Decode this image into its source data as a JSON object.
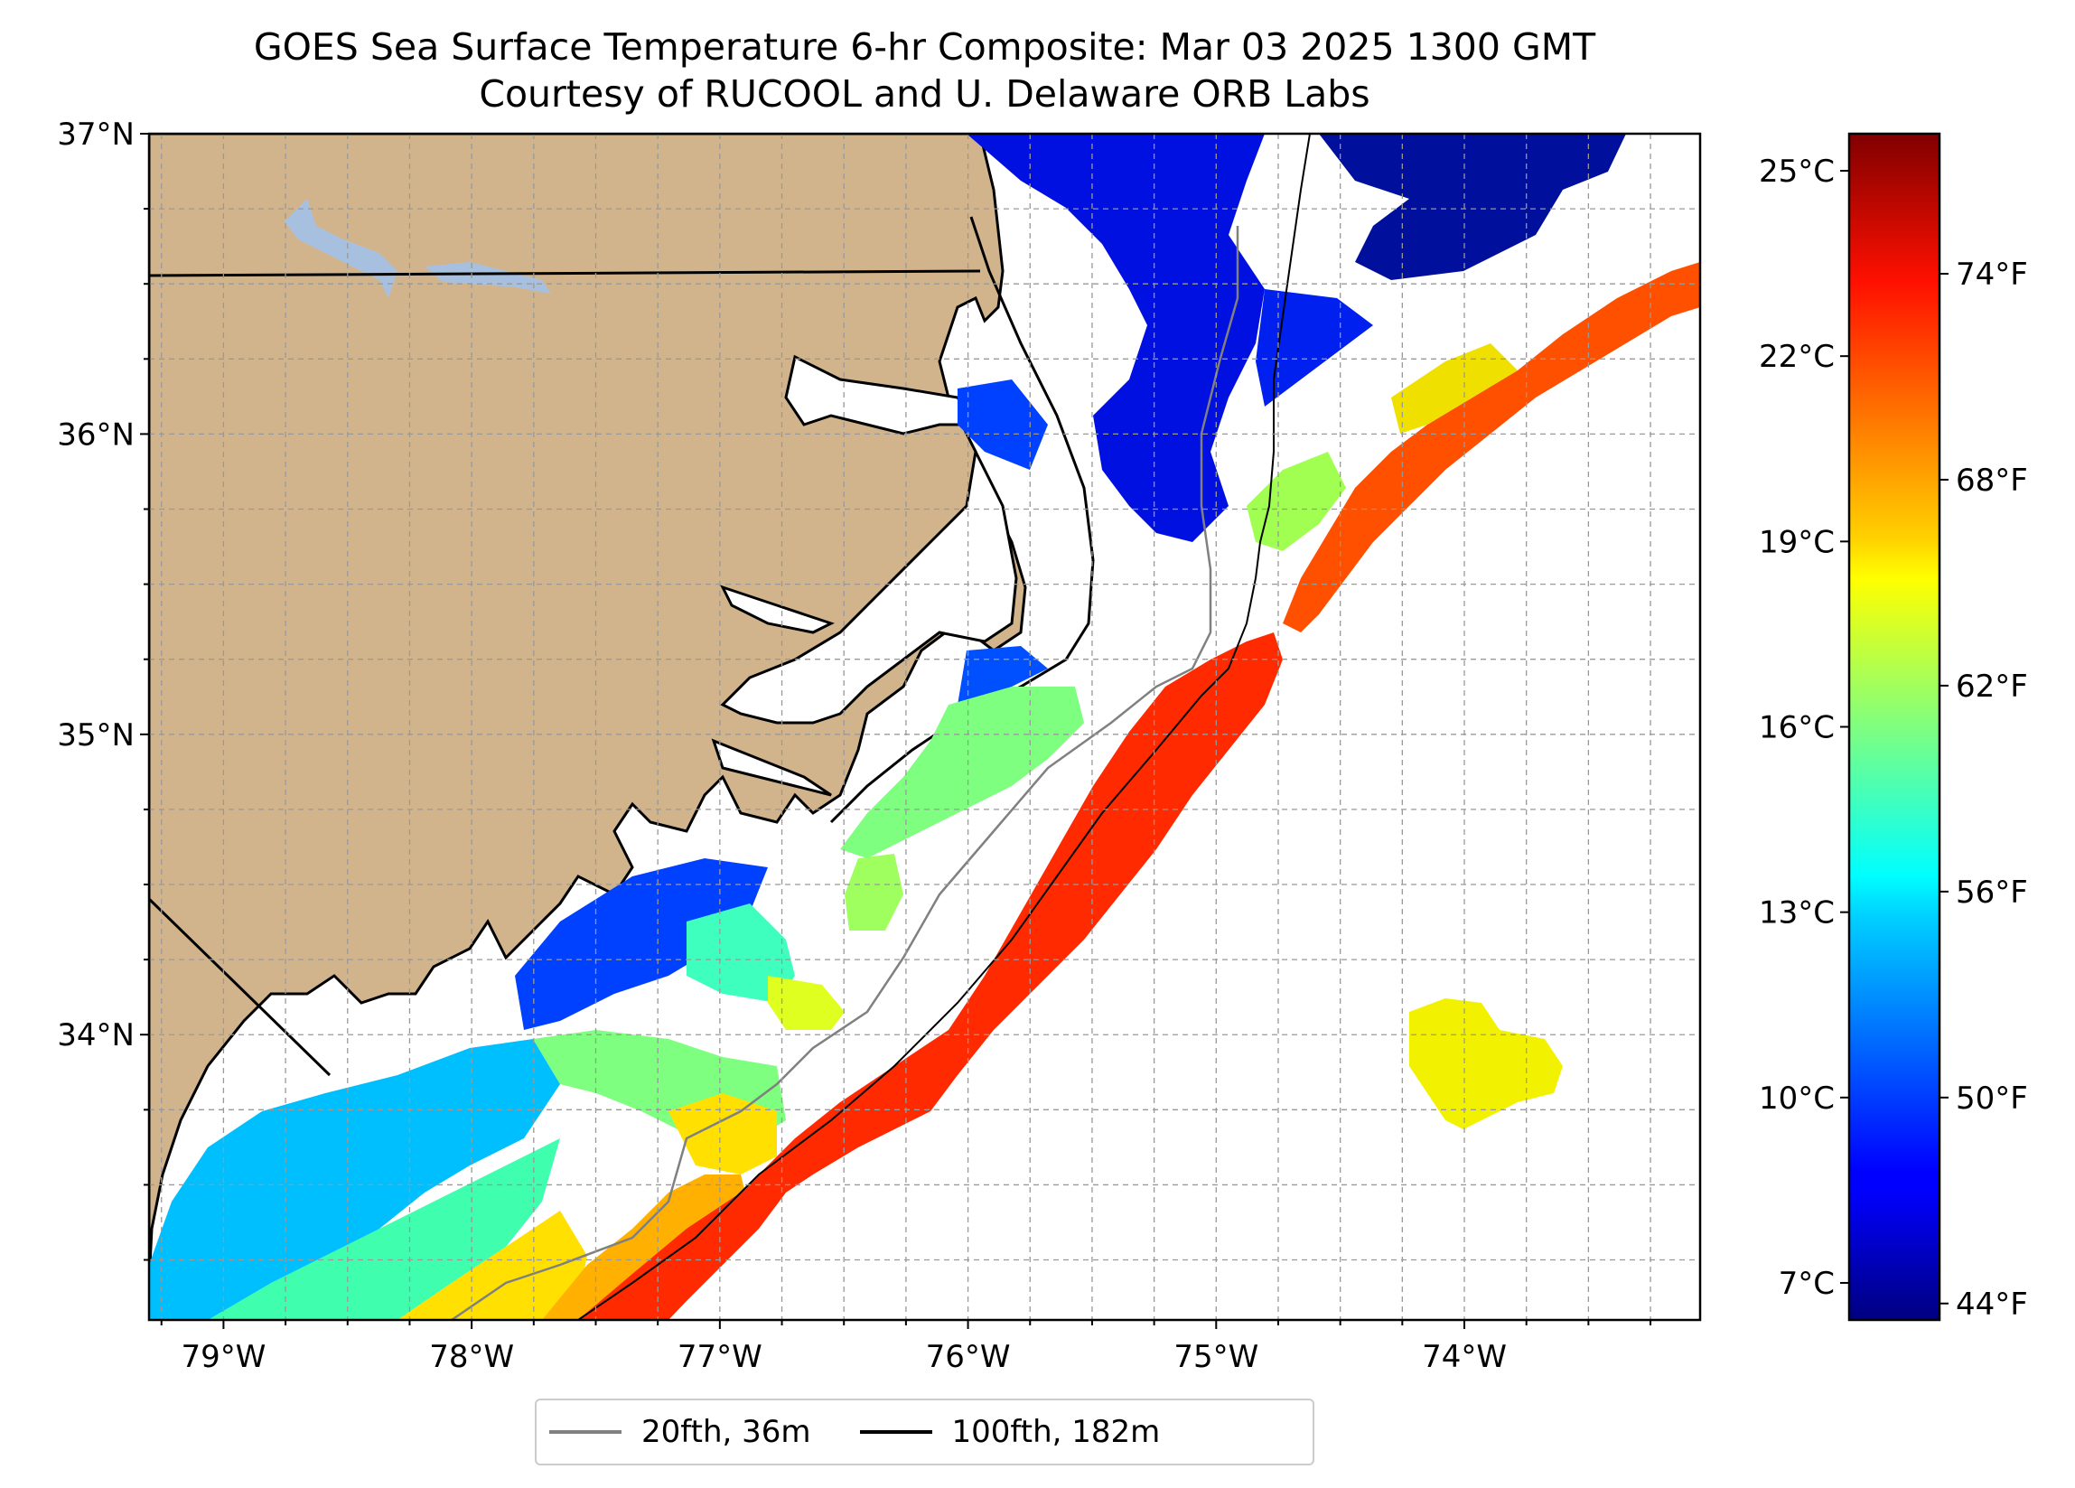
{
  "title": {
    "line1": "GOES Sea Surface Temperature 6-hr Composite: Mar 03 2025 1300 GMT",
    "line2": "Courtesy of RUCOOL and U. Delaware ORB Labs"
  },
  "map": {
    "lon_range": [
      -79.3,
      -73.05
    ],
    "lat_range": [
      33.05,
      37.0
    ],
    "lat_ticks": [
      {
        "value": 37,
        "label": "37°N"
      },
      {
        "value": 36,
        "label": "36°N"
      },
      {
        "value": 35,
        "label": "35°N"
      },
      {
        "value": 34,
        "label": "34°N"
      }
    ],
    "lon_ticks": [
      {
        "value": -79,
        "label": "79°W"
      },
      {
        "value": -78,
        "label": "78°W"
      },
      {
        "value": -77,
        "label": "77°W"
      },
      {
        "value": -76,
        "label": "76°W"
      },
      {
        "value": -75,
        "label": "75°W"
      },
      {
        "value": -74,
        "label": "74°W"
      }
    ],
    "grid": true,
    "land_color": "#d2b48c",
    "lake_color": "#a8c0e0",
    "sst_regions": [
      {
        "id": "gulf-stream-south",
        "sst_c": 22.5,
        "color": "#ff2a00"
      },
      {
        "id": "gulf-stream-north",
        "sst_c": 21.5,
        "color": "#ff4a00"
      },
      {
        "id": "offshore-warm-eddy",
        "sst_c": 19.0,
        "color": "#f2f200"
      },
      {
        "id": "onslow-bay-south",
        "sst_c": 12.0,
        "color": "#00bfff"
      },
      {
        "id": "raleigh-bay",
        "sst_c": 15.0,
        "color": "#7fff7f"
      },
      {
        "id": "outer-banks-cold",
        "sst_c": 7.5,
        "color": "#0010e0"
      }
    ]
  },
  "colorbar": {
    "cmap": "jet",
    "celsius_ticks": [
      {
        "value": 25,
        "label": "25°C"
      },
      {
        "value": 22,
        "label": "22°C"
      },
      {
        "value": 19,
        "label": "19°C"
      },
      {
        "value": 16,
        "label": "16°C"
      },
      {
        "value": 13,
        "label": "13°C"
      },
      {
        "value": 10,
        "label": "10°C"
      },
      {
        "value": 7,
        "label": "7°C"
      }
    ],
    "fahrenheit_ticks": [
      {
        "value": 74,
        "label": "74°F"
      },
      {
        "value": 68,
        "label": "68°F"
      },
      {
        "value": 62,
        "label": "62°F"
      },
      {
        "value": 56,
        "label": "56°F"
      },
      {
        "value": 50,
        "label": "50°F"
      },
      {
        "value": 44,
        "label": "44°F"
      }
    ],
    "range_c": [
      6.4,
      25.6
    ]
  },
  "legend": {
    "items": [
      {
        "label": "20fth, 36m",
        "color": "#808080"
      },
      {
        "label": "100fth, 182m",
        "color": "#000000"
      }
    ],
    "placement": "bottom-center"
  }
}
